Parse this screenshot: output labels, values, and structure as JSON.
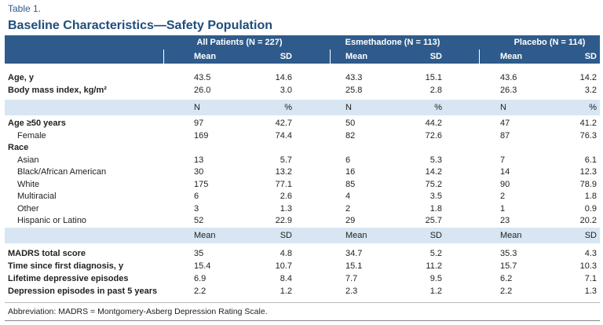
{
  "header": {
    "label": "Table 1.",
    "title": "Baseline Characteristics—Safety Population"
  },
  "table": {
    "groups": [
      "All Patients (N = 227)",
      "Esmethadone (N = 113)",
      "Placebo (N = 114)"
    ],
    "sections": [
      {
        "columns": [
          "Mean",
          "SD",
          "Mean",
          "SD",
          "Mean",
          "SD"
        ],
        "rows": [
          {
            "label": "Age, y",
            "values": [
              "43.5",
              "14.6",
              "43.3",
              "15.1",
              "43.6",
              "14.2"
            ]
          },
          {
            "label": "Body mass index, kg/m²",
            "values": [
              "26.0",
              "3.0",
              "25.8",
              "2.8",
              "26.3",
              "3.2"
            ]
          }
        ]
      },
      {
        "columns": [
          "N",
          "%",
          "N",
          "%",
          "N",
          "%"
        ],
        "rows": [
          {
            "label": "Age ≥50 years",
            "values": [
              "97",
              "42.7",
              "50",
              "44.2",
              "47",
              "41.2"
            ],
            "items": [
              {
                "label": "Female",
                "values": [
                  "169",
                  "74.4",
                  "82",
                  "72.6",
                  "87",
                  "76.3"
                ]
              }
            ]
          },
          {
            "label": "Race",
            "items": [
              {
                "label": "Asian",
                "values": [
                  "13",
                  "5.7",
                  "6",
                  "5.3",
                  "7",
                  "6.1"
                ]
              },
              {
                "label": "Black/African American",
                "values": [
                  "30",
                  "13.2",
                  "16",
                  "14.2",
                  "14",
                  "12.3"
                ]
              },
              {
                "label": "White",
                "values": [
                  "175",
                  "77.1",
                  "85",
                  "75.2",
                  "90",
                  "78.9"
                ]
              },
              {
                "label": "Multiracial",
                "values": [
                  "6",
                  "2.6",
                  "4",
                  "3.5",
                  "2",
                  "1.8"
                ]
              },
              {
                "label": "Other",
                "values": [
                  "3",
                  "1.3",
                  "2",
                  "1.8",
                  "1",
                  "0.9"
                ]
              },
              {
                "label": "Hispanic or Latino",
                "values": [
                  "52",
                  "22.9",
                  "29",
                  "25.7",
                  "23",
                  "20.2"
                ]
              }
            ]
          }
        ]
      },
      {
        "columns": [
          "Mean",
          "SD",
          "Mean",
          "SD",
          "Mean",
          "SD"
        ],
        "rows": [
          {
            "label": "MADRS total score",
            "values": [
              "35",
              "4.8",
              "34.7",
              "5.2",
              "35.3",
              "4.3"
            ]
          },
          {
            "label": "Time since first diagnosis, y",
            "values": [
              "15.4",
              "10.7",
              "15.1",
              "11.2",
              "15.7",
              "10.3"
            ]
          },
          {
            "label": "Lifetime depressive episodes",
            "values": [
              "6.9",
              "8.4",
              "7.7",
              "9.5",
              "6.2",
              "7.1"
            ]
          },
          {
            "label": "Depression episodes in past 5 years",
            "values": [
              "2.2",
              "1.2",
              "2.3",
              "1.2",
              "2.2",
              "1.3"
            ]
          }
        ]
      }
    ]
  },
  "footnote": "Abbreviation: MADRS = Montgomery-Asberg Depression Rating Scale."
}
